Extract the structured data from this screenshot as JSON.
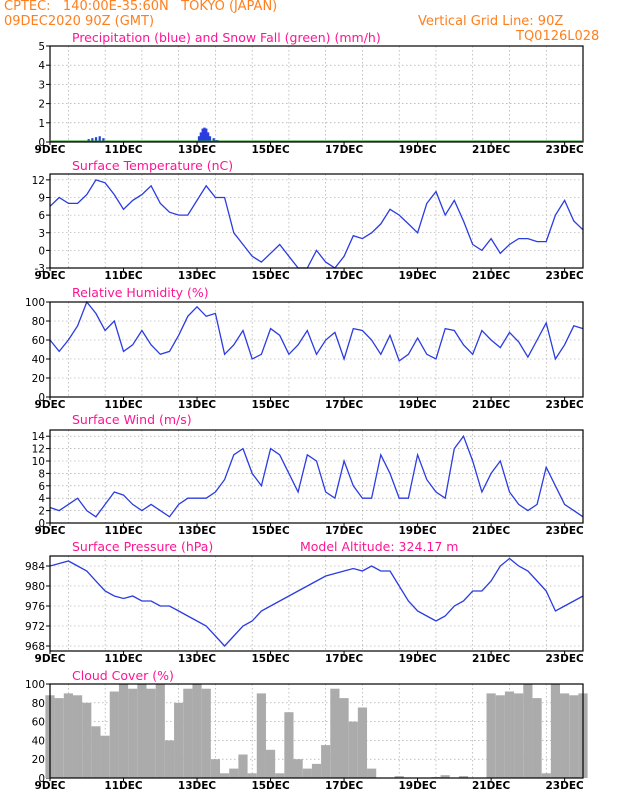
{
  "header": {
    "line1": "CPTEC:   140:00E-35:60N   TOKYO (JAPAN)",
    "line2": "09DEC2020 90Z (GMT)",
    "grid_note": "Vertical Grid Line: 90Z",
    "code": "TQ0126L028"
  },
  "colors": {
    "header": "#ff7f1e",
    "title": "#ff1493",
    "line": "#2b3ce0",
    "snow": "#1a9a1a",
    "cloud": "#ababab",
    "grid": "#9a9a9a"
  },
  "x_ticks": [
    "9DEC",
    "11DEC",
    "13DEC",
    "15DEC",
    "17DEC",
    "19DEC",
    "21DEC",
    "23DEC"
  ],
  "chart_data": [
    {
      "type": "bar",
      "title": "Precipitation (blue) and Snow Fall (green) (mm/h)",
      "ylim": [
        0,
        5
      ],
      "yticks": [
        "0",
        "1",
        "2",
        "3",
        "4",
        "5"
      ],
      "x_days": [
        0,
        14.5
      ],
      "series": [
        {
          "name": "precipitation",
          "color": "blue",
          "x": [
            1.05,
            1.15,
            1.25,
            1.35,
            1.45,
            4.05,
            4.1,
            4.15,
            4.2,
            4.25,
            4.3,
            4.35,
            4.45,
            4.5,
            4.55
          ],
          "values": [
            0.15,
            0.2,
            0.25,
            0.3,
            0.2,
            0.3,
            0.5,
            0.7,
            0.75,
            0.7,
            0.5,
            0.3,
            0.2,
            0.1,
            0.1
          ]
        },
        {
          "name": "snow fall",
          "color": "green",
          "x": [],
          "values": []
        }
      ]
    },
    {
      "type": "line",
      "title": "Surface Temperature (nC)",
      "ylim": [
        -3,
        13
      ],
      "yticks": [
        "-3",
        "0",
        "3",
        "6",
        "9",
        "12"
      ],
      "x": [
        0,
        0.25,
        0.5,
        0.75,
        1,
        1.25,
        1.5,
        1.75,
        2,
        2.25,
        2.5,
        2.75,
        3,
        3.25,
        3.5,
        3.75,
        4,
        4.25,
        4.5,
        4.75,
        5,
        5.25,
        5.5,
        5.75,
        6,
        6.25,
        6.5,
        6.75,
        7,
        7.25,
        7.5,
        7.75,
        8,
        8.25,
        8.5,
        8.75,
        9,
        9.25,
        9.5,
        9.75,
        10,
        10.25,
        10.5,
        10.75,
        11,
        11.25,
        11.5,
        11.75,
        12,
        12.25,
        12.5,
        12.75,
        13,
        13.25,
        13.5,
        13.75,
        14,
        14.25,
        14.5
      ],
      "values": [
        7.5,
        9,
        8,
        8,
        9.5,
        12,
        11.5,
        9.5,
        7,
        8.5,
        9.5,
        11,
        8,
        6.5,
        6,
        6,
        8.5,
        11,
        9,
        9,
        3,
        1,
        -1,
        -2,
        -0.5,
        1,
        -1,
        -3,
        -3,
        0,
        -2,
        -3,
        -1,
        2.5,
        2,
        3,
        4.5,
        7,
        6,
        4.5,
        3,
        8,
        10,
        6,
        8.5,
        5,
        1,
        0,
        2,
        -0.5,
        1,
        2,
        2,
        1.5,
        1.5,
        6,
        8.5,
        5,
        3.5
      ]
    },
    {
      "type": "line",
      "title": "Relative Humidity (%)",
      "ylim": [
        0,
        100
      ],
      "yticks": [
        "0",
        "20",
        "40",
        "60",
        "80",
        "100"
      ],
      "x": [
        0,
        0.25,
        0.5,
        0.75,
        1,
        1.25,
        1.5,
        1.75,
        2,
        2.25,
        2.5,
        2.75,
        3,
        3.25,
        3.5,
        3.75,
        4,
        4.25,
        4.5,
        4.75,
        5,
        5.25,
        5.5,
        5.75,
        6,
        6.25,
        6.5,
        6.75,
        7,
        7.25,
        7.5,
        7.75,
        8,
        8.25,
        8.5,
        8.75,
        9,
        9.25,
        9.5,
        9.75,
        10,
        10.25,
        10.5,
        10.75,
        11,
        11.25,
        11.5,
        11.75,
        12,
        12.25,
        12.5,
        12.75,
        13,
        13.25,
        13.5,
        13.75,
        14,
        14.25,
        14.5
      ],
      "values": [
        60,
        48,
        60,
        75,
        100,
        88,
        70,
        80,
        48,
        55,
        70,
        55,
        45,
        48,
        65,
        85,
        95,
        85,
        88,
        45,
        55,
        70,
        40,
        45,
        72,
        65,
        45,
        55,
        70,
        45,
        60,
        68,
        40,
        72,
        70,
        60,
        45,
        65,
        38,
        45,
        62,
        45,
        40,
        72,
        70,
        55,
        45,
        70,
        60,
        52,
        68,
        58,
        42,
        60,
        78,
        40,
        55,
        75,
        72
      ]
    },
    {
      "type": "line",
      "title": "Surface Wind (m/s)",
      "ylim": [
        0,
        15
      ],
      "yticks": [
        "0",
        "2",
        "4",
        "6",
        "8",
        "10",
        "12",
        "14"
      ],
      "x": [
        0,
        0.25,
        0.5,
        0.75,
        1,
        1.25,
        1.5,
        1.75,
        2,
        2.25,
        2.5,
        2.75,
        3,
        3.25,
        3.5,
        3.75,
        4,
        4.25,
        4.5,
        4.75,
        5,
        5.25,
        5.5,
        5.75,
        6,
        6.25,
        6.5,
        6.75,
        7,
        7.25,
        7.5,
        7.75,
        8,
        8.25,
        8.5,
        8.75,
        9,
        9.25,
        9.5,
        9.75,
        10,
        10.25,
        10.5,
        10.75,
        11,
        11.25,
        11.5,
        11.75,
        12,
        12.25,
        12.5,
        12.75,
        13,
        13.25,
        13.5,
        13.75,
        14,
        14.25,
        14.5
      ],
      "values": [
        2.5,
        2,
        3,
        4,
        2,
        1,
        3,
        5,
        4.5,
        3,
        2,
        3,
        2,
        1,
        3,
        4,
        4,
        4,
        5,
        7,
        11,
        12,
        8,
        6,
        12,
        11,
        8,
        5,
        11,
        10,
        5,
        4,
        10,
        6,
        4,
        4,
        11,
        8,
        4,
        4,
        11,
        7,
        5,
        4,
        12,
        14,
        10,
        5,
        8,
        10,
        5,
        3,
        2,
        3,
        9,
        6,
        3,
        2,
        1
      ]
    },
    {
      "type": "line",
      "title": "Surface Pressure (hPa)",
      "annotation": "Model Altitude: 324.17 m",
      "ylim": [
        967,
        986
      ],
      "yticks": [
        "968",
        "972",
        "976",
        "980",
        "984"
      ],
      "x": [
        0,
        0.25,
        0.5,
        0.75,
        1,
        1.25,
        1.5,
        1.75,
        2,
        2.25,
        2.5,
        2.75,
        3,
        3.25,
        3.5,
        3.75,
        4,
        4.25,
        4.5,
        4.75,
        5,
        5.25,
        5.5,
        5.75,
        6,
        6.25,
        6.5,
        6.75,
        7,
        7.25,
        7.5,
        7.75,
        8,
        8.25,
        8.5,
        8.75,
        9,
        9.25,
        9.5,
        9.75,
        10,
        10.25,
        10.5,
        10.75,
        11,
        11.25,
        11.5,
        11.75,
        12,
        12.25,
        12.5,
        12.75,
        13,
        13.25,
        13.5,
        13.75,
        14,
        14.25,
        14.5
      ],
      "values": [
        984,
        984.5,
        985,
        984,
        983,
        981,
        979,
        978,
        977.5,
        978,
        977,
        977,
        976,
        976,
        975,
        974,
        973,
        972,
        970,
        968,
        970,
        972,
        973,
        975,
        976,
        977,
        978,
        979,
        980,
        981,
        982,
        982.5,
        983,
        983.5,
        983,
        984,
        983,
        983,
        980,
        977,
        975,
        974,
        973,
        974,
        976,
        977,
        979,
        979,
        981,
        984,
        985.5,
        984,
        983,
        981,
        979,
        975,
        976,
        977,
        978
      ]
    },
    {
      "type": "area",
      "title": "Cloud Cover (%)",
      "ylim": [
        0,
        100
      ],
      "yticks": [
        "0",
        "20",
        "40",
        "60",
        "80",
        "100"
      ],
      "x": [
        0,
        0.25,
        0.5,
        0.75,
        1,
        1.25,
        1.5,
        1.75,
        2,
        2.25,
        2.5,
        2.75,
        3,
        3.25,
        3.5,
        3.75,
        4,
        4.25,
        4.5,
        4.75,
        5,
        5.25,
        5.5,
        5.75,
        6,
        6.25,
        6.5,
        6.75,
        7,
        7.25,
        7.5,
        7.75,
        8,
        8.25,
        8.5,
        8.75,
        9,
        9.25,
        9.5,
        9.75,
        10,
        10.25,
        10.5,
        10.75,
        11,
        11.25,
        11.5,
        11.75,
        12,
        12.25,
        12.5,
        12.75,
        13,
        13.25,
        13.5,
        13.75,
        14,
        14.25,
        14.5
      ],
      "values": [
        88,
        85,
        90,
        88,
        80,
        55,
        45,
        92,
        100,
        95,
        100,
        95,
        100,
        40,
        80,
        95,
        100,
        95,
        20,
        5,
        10,
        25,
        5,
        90,
        30,
        5,
        70,
        20,
        10,
        15,
        35,
        95,
        85,
        60,
        75,
        10,
        0,
        0,
        2,
        0,
        0,
        0,
        1,
        3,
        0,
        2,
        0,
        0,
        90,
        88,
        92,
        90,
        100,
        85,
        5,
        100,
        90,
        88,
        90
      ]
    }
  ]
}
